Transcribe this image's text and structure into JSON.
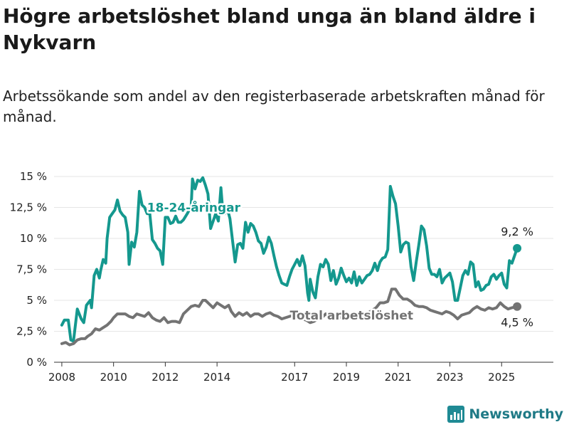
{
  "header": {
    "title": "Högre arbetslöshet bland unga än bland äldre i Nykvarn",
    "subtitle": "Arbetssökande som andel av den registerbaserade arbetskraften månad för månad."
  },
  "branding": {
    "name": "Newsworthy",
    "icon": "bar-chart-logo-icon",
    "color": "#1f8a94"
  },
  "chart_data": {
    "type": "line",
    "title": "Högre arbetslöshet bland unga än bland äldre i Nykvarn",
    "subtitle": "Arbetssökande som andel av den registerbaserade arbetskraften månad för månad.",
    "x_start_year": 2008,
    "x_ticks": [
      "2008",
      "2010",
      "2012",
      "2014",
      "2017",
      "2019",
      "2021",
      "2023",
      "2025"
    ],
    "y_ticks": [
      "0 %",
      "2,5 %",
      "5 %",
      "7,5 %",
      "10 %",
      "12,5 %",
      "15 %"
    ],
    "ylim": [
      0,
      15
    ],
    "xlim": [
      2007.7,
      2027.0
    ],
    "grid": true,
    "legend": "inline labels",
    "series": [
      {
        "name": "18-24-åringar",
        "color": "#14988e",
        "end_label": "9,2 %",
        "points": [
          [
            2008.0,
            3.0
          ],
          [
            2008.1,
            3.4
          ],
          [
            2008.25,
            3.4
          ],
          [
            2008.35,
            1.8
          ],
          [
            2008.45,
            1.7
          ],
          [
            2008.6,
            4.3
          ],
          [
            2008.75,
            3.5
          ],
          [
            2008.85,
            3.2
          ],
          [
            2008.95,
            4.6
          ],
          [
            2009.1,
            5.0
          ],
          [
            2009.15,
            4.4
          ],
          [
            2009.25,
            7.0
          ],
          [
            2009.35,
            7.5
          ],
          [
            2009.45,
            6.8
          ],
          [
            2009.5,
            7.4
          ],
          [
            2009.6,
            8.3
          ],
          [
            2009.7,
            8.0
          ],
          [
            2009.75,
            10.0
          ],
          [
            2009.85,
            11.7
          ],
          [
            2009.95,
            12.0
          ],
          [
            2010.05,
            12.3
          ],
          [
            2010.15,
            13.1
          ],
          [
            2010.25,
            12.2
          ],
          [
            2010.35,
            11.9
          ],
          [
            2010.45,
            11.7
          ],
          [
            2010.55,
            10.5
          ],
          [
            2010.6,
            7.9
          ],
          [
            2010.7,
            9.7
          ],
          [
            2010.8,
            9.3
          ],
          [
            2010.9,
            10.5
          ],
          [
            2011.0,
            13.8
          ],
          [
            2011.1,
            12.7
          ],
          [
            2011.2,
            12.5
          ],
          [
            2011.3,
            12.0
          ],
          [
            2011.4,
            12.0
          ],
          [
            2011.5,
            9.9
          ],
          [
            2011.6,
            9.6
          ],
          [
            2011.7,
            9.2
          ],
          [
            2011.8,
            9.0
          ],
          [
            2011.9,
            7.9
          ],
          [
            2012.0,
            11.7
          ],
          [
            2012.1,
            11.7
          ],
          [
            2012.2,
            11.2
          ],
          [
            2012.3,
            11.3
          ],
          [
            2012.4,
            11.8
          ],
          [
            2012.5,
            11.3
          ],
          [
            2012.6,
            11.3
          ],
          [
            2012.7,
            11.5
          ],
          [
            2012.85,
            12.0
          ],
          [
            2013.0,
            12.6
          ],
          [
            2013.05,
            14.8
          ],
          [
            2013.15,
            14.0
          ],
          [
            2013.25,
            14.7
          ],
          [
            2013.35,
            14.6
          ],
          [
            2013.45,
            14.9
          ],
          [
            2013.55,
            14.3
          ],
          [
            2013.65,
            13.6
          ],
          [
            2013.75,
            10.8
          ],
          [
            2013.85,
            11.4
          ],
          [
            2013.95,
            12.0
          ],
          [
            2014.05,
            11.4
          ],
          [
            2014.15,
            14.1
          ],
          [
            2014.2,
            12.8
          ],
          [
            2014.3,
            12.0
          ],
          [
            2014.4,
            12.4
          ],
          [
            2014.5,
            11.6
          ],
          [
            2014.6,
            9.8
          ],
          [
            2014.7,
            8.1
          ],
          [
            2014.8,
            9.5
          ],
          [
            2014.9,
            9.6
          ],
          [
            2015.0,
            9.2
          ],
          [
            2015.1,
            11.3
          ],
          [
            2015.2,
            10.5
          ],
          [
            2015.3,
            11.2
          ],
          [
            2015.4,
            11.0
          ],
          [
            2015.5,
            10.5
          ],
          [
            2015.6,
            9.8
          ],
          [
            2015.7,
            9.6
          ],
          [
            2015.8,
            8.8
          ],
          [
            2015.9,
            9.3
          ],
          [
            2016.0,
            10.1
          ],
          [
            2016.1,
            9.6
          ],
          [
            2016.2,
            8.6
          ],
          [
            2016.3,
            7.7
          ],
          [
            2016.4,
            7.0
          ],
          [
            2016.5,
            6.4
          ],
          [
            2016.6,
            6.3
          ],
          [
            2016.7,
            6.2
          ],
          [
            2016.8,
            6.9
          ],
          [
            2016.9,
            7.5
          ],
          [
            2017.0,
            7.9
          ],
          [
            2017.1,
            8.3
          ],
          [
            2017.2,
            7.8
          ],
          [
            2017.3,
            8.6
          ],
          [
            2017.4,
            7.8
          ],
          [
            2017.5,
            5.6
          ],
          [
            2017.55,
            5.0
          ],
          [
            2017.6,
            6.7
          ],
          [
            2017.7,
            5.7
          ],
          [
            2017.8,
            5.2
          ],
          [
            2017.9,
            6.9
          ],
          [
            2018.0,
            7.9
          ],
          [
            2018.1,
            7.7
          ],
          [
            2018.2,
            8.3
          ],
          [
            2018.3,
            7.9
          ],
          [
            2018.4,
            6.6
          ],
          [
            2018.5,
            7.4
          ],
          [
            2018.6,
            6.3
          ],
          [
            2018.7,
            6.8
          ],
          [
            2018.8,
            7.6
          ],
          [
            2018.9,
            7.0
          ],
          [
            2019.0,
            6.5
          ],
          [
            2019.1,
            6.8
          ],
          [
            2019.2,
            6.4
          ],
          [
            2019.3,
            7.3
          ],
          [
            2019.4,
            6.2
          ],
          [
            2019.5,
            6.9
          ],
          [
            2019.6,
            6.4
          ],
          [
            2019.7,
            6.7
          ],
          [
            2019.8,
            7.0
          ],
          [
            2019.9,
            7.1
          ],
          [
            2020.0,
            7.4
          ],
          [
            2020.1,
            8.0
          ],
          [
            2020.2,
            7.4
          ],
          [
            2020.3,
            8.1
          ],
          [
            2020.4,
            8.4
          ],
          [
            2020.5,
            8.5
          ],
          [
            2020.6,
            9.1
          ],
          [
            2020.7,
            14.2
          ],
          [
            2020.8,
            13.4
          ],
          [
            2020.9,
            12.8
          ],
          [
            2021.0,
            11.0
          ],
          [
            2021.1,
            8.9
          ],
          [
            2021.2,
            9.5
          ],
          [
            2021.3,
            9.7
          ],
          [
            2021.4,
            9.6
          ],
          [
            2021.5,
            7.7
          ],
          [
            2021.6,
            6.6
          ],
          [
            2021.7,
            8.1
          ],
          [
            2021.8,
            9.5
          ],
          [
            2021.9,
            11.0
          ],
          [
            2022.0,
            10.7
          ],
          [
            2022.1,
            9.4
          ],
          [
            2022.2,
            7.6
          ],
          [
            2022.3,
            7.1
          ],
          [
            2022.4,
            7.1
          ],
          [
            2022.5,
            6.9
          ],
          [
            2022.6,
            7.5
          ],
          [
            2022.7,
            6.4
          ],
          [
            2022.8,
            6.8
          ],
          [
            2022.9,
            7.0
          ],
          [
            2023.0,
            7.2
          ],
          [
            2023.1,
            6.5
          ],
          [
            2023.2,
            5.0
          ],
          [
            2023.3,
            5.0
          ],
          [
            2023.4,
            6.0
          ],
          [
            2023.5,
            7.0
          ],
          [
            2023.6,
            7.4
          ],
          [
            2023.7,
            7.1
          ],
          [
            2023.8,
            8.1
          ],
          [
            2023.9,
            7.9
          ],
          [
            2024.0,
            6.1
          ],
          [
            2024.1,
            6.5
          ],
          [
            2024.2,
            5.8
          ],
          [
            2024.3,
            5.9
          ],
          [
            2024.4,
            6.2
          ],
          [
            2024.5,
            6.3
          ],
          [
            2024.6,
            6.9
          ],
          [
            2024.7,
            7.1
          ],
          [
            2024.8,
            6.7
          ],
          [
            2024.9,
            7.0
          ],
          [
            2025.0,
            7.2
          ],
          [
            2025.1,
            6.3
          ],
          [
            2025.2,
            6.0
          ],
          [
            2025.3,
            8.2
          ],
          [
            2025.4,
            8.0
          ],
          [
            2025.6,
            9.2
          ]
        ]
      },
      {
        "name": "Total arbetslöshet",
        "color": "#737373",
        "end_label": "4,5 %",
        "points": [
          [
            2008.0,
            1.5
          ],
          [
            2008.15,
            1.6
          ],
          [
            2008.3,
            1.4
          ],
          [
            2008.45,
            1.5
          ],
          [
            2008.6,
            1.8
          ],
          [
            2008.75,
            1.9
          ],
          [
            2008.9,
            1.9
          ],
          [
            2009.0,
            2.1
          ],
          [
            2009.15,
            2.3
          ],
          [
            2009.3,
            2.7
          ],
          [
            2009.45,
            2.6
          ],
          [
            2009.6,
            2.8
          ],
          [
            2009.75,
            3.0
          ],
          [
            2009.9,
            3.3
          ],
          [
            2010.0,
            3.6
          ],
          [
            2010.15,
            3.9
          ],
          [
            2010.3,
            3.9
          ],
          [
            2010.45,
            3.9
          ],
          [
            2010.6,
            3.7
          ],
          [
            2010.75,
            3.6
          ],
          [
            2010.9,
            3.9
          ],
          [
            2011.05,
            3.8
          ],
          [
            2011.2,
            3.7
          ],
          [
            2011.35,
            4.0
          ],
          [
            2011.5,
            3.6
          ],
          [
            2011.65,
            3.4
          ],
          [
            2011.8,
            3.3
          ],
          [
            2011.95,
            3.6
          ],
          [
            2012.1,
            3.2
          ],
          [
            2012.25,
            3.3
          ],
          [
            2012.4,
            3.3
          ],
          [
            2012.55,
            3.2
          ],
          [
            2012.7,
            3.9
          ],
          [
            2012.85,
            4.2
          ],
          [
            2013.0,
            4.5
          ],
          [
            2013.15,
            4.6
          ],
          [
            2013.3,
            4.5
          ],
          [
            2013.45,
            5.0
          ],
          [
            2013.55,
            5.0
          ],
          [
            2013.7,
            4.7
          ],
          [
            2013.85,
            4.4
          ],
          [
            2014.0,
            4.8
          ],
          [
            2014.15,
            4.6
          ],
          [
            2014.3,
            4.4
          ],
          [
            2014.45,
            4.6
          ],
          [
            2014.55,
            4.1
          ],
          [
            2014.7,
            3.7
          ],
          [
            2014.85,
            4.0
          ],
          [
            2015.0,
            3.8
          ],
          [
            2015.15,
            4.0
          ],
          [
            2015.3,
            3.7
          ],
          [
            2015.45,
            3.9
          ],
          [
            2015.6,
            3.9
          ],
          [
            2015.75,
            3.7
          ],
          [
            2015.9,
            3.9
          ],
          [
            2016.05,
            4.0
          ],
          [
            2016.2,
            3.8
          ],
          [
            2016.35,
            3.7
          ],
          [
            2016.5,
            3.5
          ],
          [
            2016.65,
            3.6
          ],
          [
            2016.8,
            3.7
          ],
          [
            2017.0,
            3.8
          ],
          [
            2017.15,
            3.7
          ],
          [
            2017.3,
            3.5
          ],
          [
            2017.45,
            3.4
          ],
          [
            2017.6,
            3.2
          ],
          [
            2017.75,
            3.3
          ],
          [
            2017.9,
            3.5
          ],
          [
            2018.05,
            3.6
          ],
          [
            2018.2,
            3.9
          ],
          [
            2018.35,
            3.6
          ],
          [
            2018.5,
            3.5
          ],
          [
            2018.65,
            3.7
          ],
          [
            2018.8,
            3.6
          ],
          [
            2018.95,
            3.5
          ],
          [
            2019.1,
            3.6
          ],
          [
            2019.25,
            3.7
          ],
          [
            2019.4,
            3.5
          ],
          [
            2019.55,
            3.6
          ],
          [
            2019.7,
            3.8
          ],
          [
            2019.85,
            4.0
          ],
          [
            2020.0,
            4.2
          ],
          [
            2020.15,
            4.4
          ],
          [
            2020.3,
            4.8
          ],
          [
            2020.45,
            4.8
          ],
          [
            2020.6,
            4.9
          ],
          [
            2020.75,
            5.9
          ],
          [
            2020.9,
            5.9
          ],
          [
            2021.05,
            5.4
          ],
          [
            2021.2,
            5.1
          ],
          [
            2021.35,
            5.1
          ],
          [
            2021.5,
            4.9
          ],
          [
            2021.65,
            4.6
          ],
          [
            2021.8,
            4.5
          ],
          [
            2021.95,
            4.5
          ],
          [
            2022.1,
            4.4
          ],
          [
            2022.25,
            4.2
          ],
          [
            2022.4,
            4.1
          ],
          [
            2022.55,
            4.0
          ],
          [
            2022.7,
            3.9
          ],
          [
            2022.85,
            4.1
          ],
          [
            2023.0,
            4.0
          ],
          [
            2023.15,
            3.8
          ],
          [
            2023.3,
            3.5
          ],
          [
            2023.45,
            3.8
          ],
          [
            2023.6,
            3.9
          ],
          [
            2023.75,
            4.0
          ],
          [
            2023.9,
            4.3
          ],
          [
            2024.05,
            4.5
          ],
          [
            2024.2,
            4.3
          ],
          [
            2024.35,
            4.2
          ],
          [
            2024.5,
            4.4
          ],
          [
            2024.65,
            4.3
          ],
          [
            2024.8,
            4.4
          ],
          [
            2024.95,
            4.8
          ],
          [
            2025.1,
            4.5
          ],
          [
            2025.25,
            4.3
          ],
          [
            2025.4,
            4.4
          ],
          [
            2025.6,
            4.5
          ]
        ]
      }
    ]
  }
}
